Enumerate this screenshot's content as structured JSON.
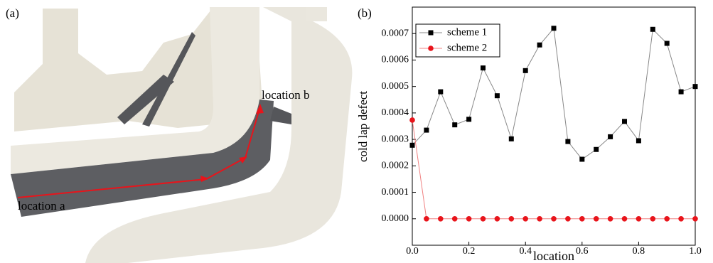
{
  "panel_a": {
    "label": "(a)",
    "annotations": [
      "location a",
      "location b"
    ]
  },
  "chart_data": {
    "type": "line",
    "panel_label": "(b)",
    "x_label": "location",
    "y_label": "cold lap defect",
    "x": [
      0,
      0.05,
      0.1,
      0.15,
      0.2,
      0.25,
      0.3,
      0.35,
      0.4,
      0.45,
      0.5,
      0.55,
      0.6,
      0.65,
      0.7,
      0.75,
      0.8,
      0.85,
      0.9,
      0.95,
      1.0
    ],
    "series": [
      {
        "name": "scheme 1",
        "color": "#000000",
        "line_color": "#888888",
        "marker": "square",
        "values": [
          0.000278,
          0.000335,
          0.00048,
          0.000355,
          0.000376,
          0.00057,
          0.000465,
          0.000302,
          0.00056,
          0.000657,
          0.00072,
          0.000292,
          0.000225,
          0.000262,
          0.00031,
          0.000368,
          0.000295,
          0.000716,
          0.000663,
          0.00048,
          0.0005
        ]
      },
      {
        "name": "scheme 2",
        "color": "#e8141b",
        "line_color": "#f08080",
        "marker": "circle",
        "values": [
          0.000373,
          0,
          0,
          0,
          0,
          0,
          0,
          0,
          0,
          0,
          0,
          0,
          0,
          0,
          0,
          0,
          0,
          0,
          0,
          0,
          0
        ]
      }
    ],
    "xlim": [
      0,
      1.0
    ],
    "ylim": [
      -0.0001,
      0.0008
    ],
    "xticks": [
      {
        "value": 0,
        "label": "0.0"
      },
      0.2,
      0.4,
      0.6,
      0.8,
      {
        "value": 1.0,
        "label": "1.0"
      }
    ],
    "yticks": [
      {
        "value": 0,
        "label": "0.0000"
      },
      {
        "value": 0.0001,
        "label": "0.0001"
      },
      {
        "value": 0.0002,
        "label": "0.0002"
      },
      {
        "value": 0.0003,
        "label": "0.0003"
      },
      {
        "value": 0.0004,
        "label": "0.0004"
      },
      {
        "value": 0.0005,
        "label": "0.0005"
      },
      {
        "value": 0.0006,
        "label": "0.0006"
      },
      {
        "value": 0.0007,
        "label": "0.0007"
      }
    ],
    "legend": "upper left"
  }
}
